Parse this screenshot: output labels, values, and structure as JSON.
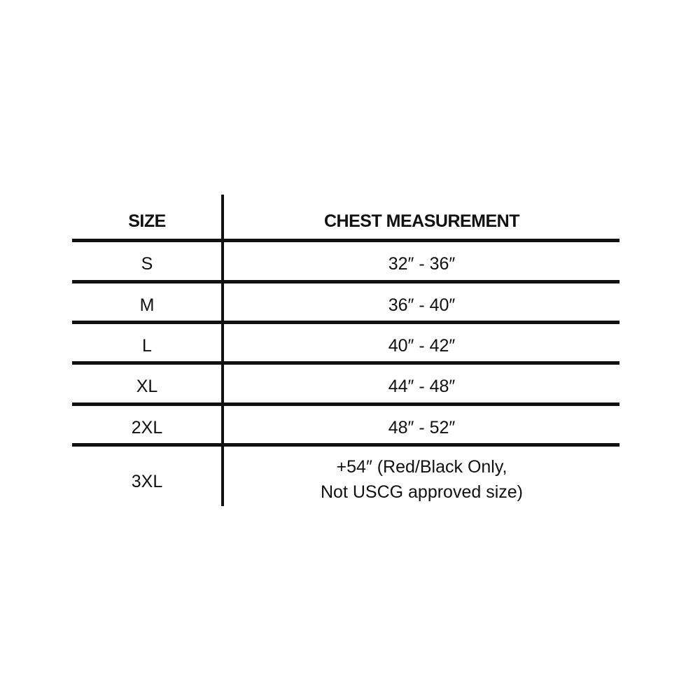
{
  "table": {
    "headers": {
      "size": "SIZE",
      "measurement": "CHEST MEASUREMENT"
    },
    "rows": [
      {
        "size": "S",
        "measurement": "32″ - 36″"
      },
      {
        "size": "M",
        "measurement": "36″ - 40″"
      },
      {
        "size": "L",
        "measurement": "40″ - 42″"
      },
      {
        "size": "XL",
        "measurement": "44″ - 48″"
      },
      {
        "size": "2XL",
        "measurement": "48″ - 52″"
      },
      {
        "size": "3XL",
        "measurement_line1": "+54″ (Red/Black Only,",
        "measurement_line2": "Not USCG approved size)"
      }
    ]
  }
}
